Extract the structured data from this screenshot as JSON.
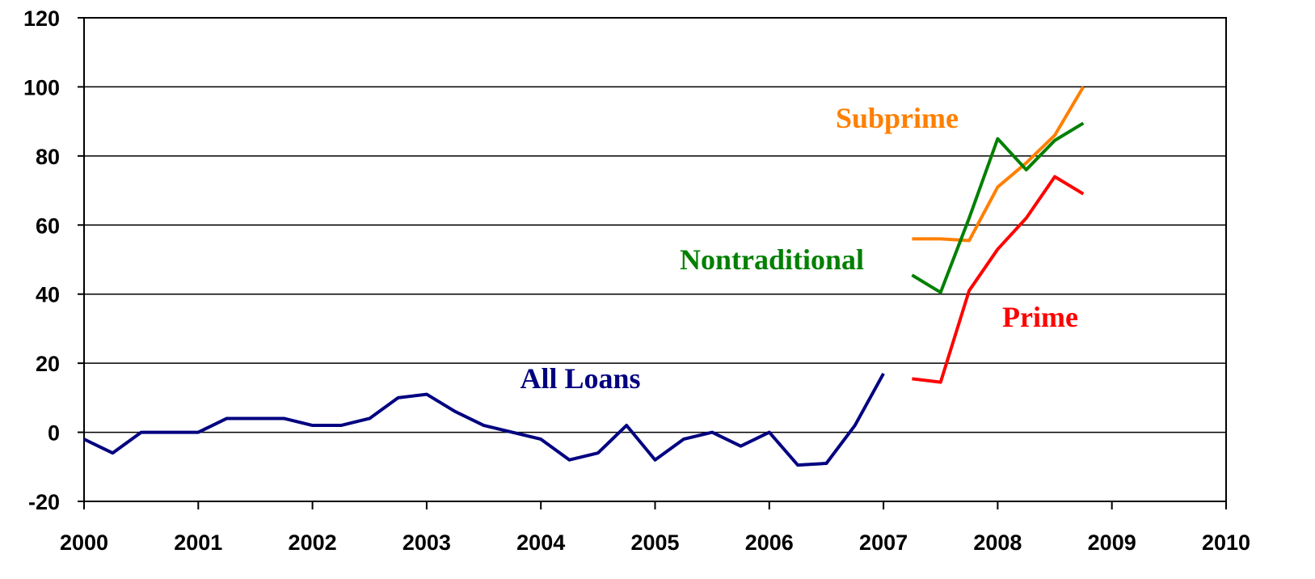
{
  "chart_data": {
    "type": "line",
    "xlim": [
      2000,
      2010
    ],
    "xticks": [
      2000,
      2001,
      2002,
      2003,
      2004,
      2005,
      2006,
      2007,
      2008,
      2009,
      2010
    ],
    "ylim": [
      -20,
      120
    ],
    "yticks": [
      -20,
      0,
      20,
      40,
      60,
      80,
      100,
      120
    ],
    "grid": true,
    "series": [
      {
        "name": "All Loans",
        "color": "#000080",
        "x": [
          2000,
          2000.25,
          2000.5,
          2000.75,
          2001,
          2001.25,
          2001.5,
          2001.75,
          2002,
          2002.25,
          2002.5,
          2002.75,
          2003,
          2003.25,
          2003.5,
          2003.75,
          2004,
          2004.25,
          2004.5,
          2004.75,
          2005,
          2005.25,
          2005.5,
          2005.75,
          2006,
          2006.25,
          2006.5,
          2006.75,
          2007
        ],
        "values": [
          -2,
          -6,
          0,
          0,
          0,
          4,
          4,
          4,
          2,
          2,
          4,
          10,
          11,
          6,
          2,
          0,
          -2,
          -8,
          -6,
          2,
          -8,
          -2,
          0,
          -4,
          0,
          -9.5,
          -9,
          2,
          17
        ]
      },
      {
        "name": "Subprime",
        "color": "#ff7f00",
        "x": [
          2007.25,
          2007.5,
          2007.75,
          2008,
          2008.25,
          2008.5,
          2008.75
        ],
        "values": [
          56,
          56,
          55.5,
          71,
          78,
          86,
          100
        ]
      },
      {
        "name": "Nontraditional",
        "color": "#008000",
        "x": [
          2007.25,
          2007.5,
          2007.75,
          2008,
          2008.25,
          2008.5,
          2008.75
        ],
        "values": [
          45.5,
          40.5,
          62,
          85,
          76,
          84.5,
          89.5
        ]
      },
      {
        "name": "Prime",
        "color": "#ff0000",
        "x": [
          2007.25,
          2007.5,
          2007.75,
          2008,
          2008.25,
          2008.5,
          2008.75
        ],
        "values": [
          15.5,
          14.5,
          41,
          53,
          62,
          74,
          69
        ]
      }
    ]
  }
}
